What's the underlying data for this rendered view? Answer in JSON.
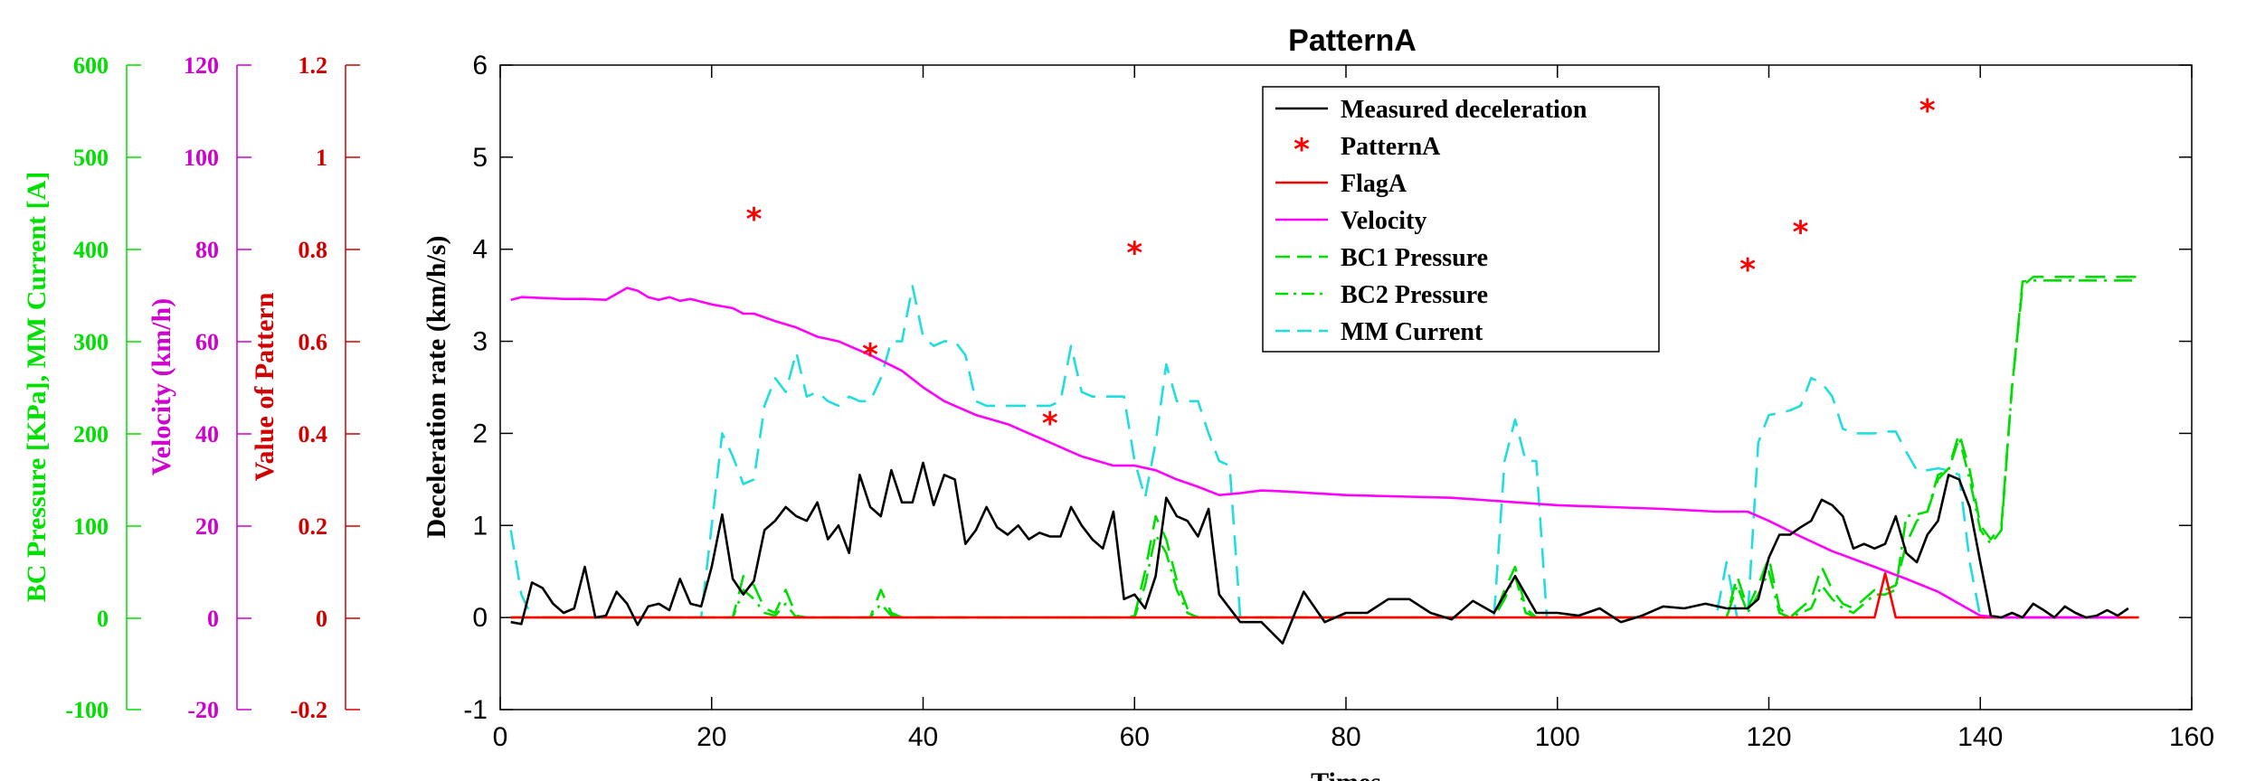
{
  "chart_data": {
    "type": "line",
    "title": "PatternA",
    "xlabel": "Times",
    "ylabel": "Deceleration rate (km/h/s)",
    "xlim": [
      0,
      160
    ],
    "ylim": [
      -1,
      6
    ],
    "xticks": [
      0,
      20,
      40,
      60,
      80,
      100,
      120,
      140,
      160
    ],
    "yticks": [
      -1,
      0,
      1,
      2,
      3,
      4,
      5,
      6
    ],
    "legend_position": "top-center",
    "extra_axes": [
      {
        "label": "BC Pressure [KPa], MM Current [A]",
        "color": "#00e000",
        "ticks": [
          "600",
          "500",
          "400",
          "300",
          "200",
          "100",
          "0",
          "-100"
        ]
      },
      {
        "label": "Velocity (km/h)",
        "color": "#d000d0",
        "ticks": [
          "120",
          "100",
          "80",
          "60",
          "40",
          "20",
          "0",
          "-20"
        ]
      },
      {
        "label": "Value of Pattern",
        "color": "#d00000",
        "ticks": [
          "1.2",
          "1",
          "0.8",
          "0.6",
          "0.4",
          "0.2",
          "0",
          "-0.2"
        ]
      }
    ],
    "series": [
      {
        "name": "Measured deceleration",
        "color": "#000000",
        "style": "solid",
        "x": [
          1,
          2,
          3,
          4,
          5,
          6,
          7,
          8,
          9,
          10,
          11,
          12,
          13,
          14,
          15,
          16,
          17,
          18,
          19,
          20,
          21,
          22,
          23,
          24,
          25,
          26,
          27,
          28,
          29,
          30,
          31,
          32,
          33,
          34,
          35,
          36,
          37,
          38,
          39,
          40,
          41,
          42,
          43,
          44,
          45,
          46,
          47,
          48,
          49,
          50,
          51,
          52,
          53,
          54,
          55,
          56,
          57,
          58,
          59,
          60,
          61,
          62,
          63,
          64,
          65,
          66,
          67,
          68,
          70,
          72,
          74,
          75,
          76,
          78,
          80,
          82,
          84,
          86,
          88,
          90,
          92,
          94,
          96,
          98,
          100,
          102,
          104,
          106,
          108,
          110,
          112,
          114,
          116,
          118,
          119,
          120,
          121,
          122,
          123,
          124,
          125,
          126,
          127,
          128,
          129,
          130,
          131,
          132,
          133,
          134,
          135,
          136,
          137,
          138,
          139,
          140,
          141,
          142,
          143,
          144,
          145,
          146,
          147,
          148,
          149,
          150,
          151,
          152,
          153,
          154
        ],
        "y": [
          -0.05,
          -0.07,
          0.38,
          0.32,
          0.15,
          0.05,
          0.1,
          0.55,
          0.0,
          0.02,
          0.28,
          0.15,
          -0.08,
          0.12,
          0.15,
          0.08,
          0.42,
          0.15,
          0.12,
          0.55,
          1.12,
          0.42,
          0.25,
          0.4,
          0.95,
          1.05,
          1.2,
          1.1,
          1.05,
          1.25,
          0.85,
          1.0,
          0.7,
          1.55,
          1.2,
          1.1,
          1.6,
          1.25,
          1.25,
          1.68,
          1.22,
          1.55,
          1.5,
          0.8,
          0.95,
          1.2,
          0.98,
          0.9,
          1.0,
          0.85,
          0.92,
          0.88,
          0.88,
          1.2,
          1.0,
          0.85,
          0.75,
          1.15,
          0.2,
          0.25,
          0.1,
          0.45,
          1.3,
          1.1,
          1.05,
          0.88,
          1.18,
          0.25,
          -0.05,
          -0.05,
          -0.28,
          0.0,
          0.28,
          -0.05,
          0.05,
          0.05,
          0.2,
          0.2,
          0.05,
          -0.02,
          0.18,
          0.05,
          0.45,
          0.05,
          0.05,
          0.02,
          0.1,
          -0.05,
          0.02,
          0.12,
          0.1,
          0.15,
          0.1,
          0.1,
          0.2,
          0.65,
          0.9,
          0.9,
          0.98,
          1.05,
          1.28,
          1.22,
          1.1,
          0.75,
          0.8,
          0.75,
          0.8,
          1.1,
          0.7,
          0.6,
          0.9,
          1.05,
          1.55,
          1.5,
          1.2,
          0.6,
          0.02,
          0.0,
          0.05,
          0.0,
          0.15,
          0.08,
          0.0,
          0.12,
          0.05,
          0.0,
          0.02,
          0.08,
          0.02,
          0.1
        ]
      },
      {
        "name": "PatternA",
        "color": "#ff0000",
        "style": "markers",
        "x": [
          24,
          35,
          52,
          60,
          118,
          123,
          135
        ],
        "y": [
          4.37,
          2.9,
          2.15,
          4.0,
          3.82,
          4.23,
          5.55
        ]
      },
      {
        "name": "FlagA",
        "color": "#ff0000",
        "style": "solid",
        "x": [
          1,
          130,
          131,
          132,
          155
        ],
        "y": [
          0,
          0,
          0.48,
          0,
          0
        ]
      },
      {
        "name": "Velocity",
        "color": "#ff00ff",
        "style": "solid",
        "x": [
          1,
          2,
          4,
          6,
          8,
          10,
          12,
          13,
          14,
          15,
          16,
          17,
          18,
          20,
          22,
          23,
          24,
          26,
          28,
          30,
          32,
          35,
          38,
          40,
          42,
          45,
          48,
          50,
          52,
          55,
          58,
          60,
          62,
          64,
          66,
          68,
          70,
          72,
          74,
          80,
          90,
          100,
          110,
          115,
          118,
          120,
          123,
          126,
          130,
          133,
          136,
          138,
          140,
          142,
          145,
          150,
          153
        ],
        "y": [
          3.45,
          3.48,
          3.47,
          3.46,
          3.46,
          3.45,
          3.58,
          3.55,
          3.48,
          3.45,
          3.48,
          3.44,
          3.46,
          3.4,
          3.36,
          3.3,
          3.3,
          3.22,
          3.15,
          3.05,
          3.0,
          2.85,
          2.68,
          2.5,
          2.35,
          2.2,
          2.1,
          2.0,
          1.9,
          1.75,
          1.65,
          1.65,
          1.6,
          1.5,
          1.42,
          1.33,
          1.35,
          1.38,
          1.37,
          1.33,
          1.3,
          1.22,
          1.18,
          1.15,
          1.15,
          1.05,
          0.88,
          0.72,
          0.55,
          0.42,
          0.28,
          0.15,
          0.02,
          0.0,
          0.0,
          0.0,
          0.0
        ]
      },
      {
        "name": "BC1 Pressure",
        "color": "#00dd00",
        "style": "dashed",
        "x": [
          1,
          20,
          22,
          23,
          24,
          25,
          26,
          27,
          28,
          29,
          35,
          36,
          37,
          38,
          50,
          55,
          59,
          60,
          61,
          62,
          63,
          64,
          65,
          66,
          70,
          94,
          95,
          96,
          97,
          98,
          99,
          116,
          117,
          118,
          119,
          120,
          121,
          122,
          124,
          125,
          126,
          127,
          128,
          129,
          130,
          131,
          132,
          133,
          134,
          135,
          136,
          137,
          138,
          139,
          140,
          141,
          142,
          143,
          144,
          145,
          155
        ],
        "y": [
          0,
          0,
          0,
          0.45,
          0.35,
          0.1,
          0.05,
          0.3,
          0.02,
          0,
          0,
          0.3,
          0.05,
          0,
          0,
          0,
          0,
          0.02,
          0.5,
          1.1,
          0.85,
          0.4,
          0.1,
          0,
          0,
          0,
          0.3,
          0.55,
          0.1,
          0,
          0,
          0,
          0.45,
          0.1,
          0.35,
          0.65,
          0.1,
          0,
          0.2,
          0.55,
          0.3,
          0.15,
          0.1,
          0.2,
          0.3,
          0.3,
          0.35,
          0.8,
          1.05,
          1.15,
          1.5,
          1.62,
          2.0,
          1.6,
          1.0,
          0.85,
          1.0,
          2.5,
          3.6,
          3.7,
          3.7
        ]
      },
      {
        "name": "BC2 Pressure",
        "color": "#00dd00",
        "style": "dashdot",
        "x": [
          1,
          20,
          22,
          23,
          24,
          25,
          26,
          27,
          28,
          29,
          35,
          36,
          37,
          38,
          50,
          55,
          59,
          60,
          61,
          62,
          63,
          64,
          65,
          66,
          70,
          94,
          95,
          96,
          97,
          98,
          99,
          116,
          117,
          118,
          119,
          120,
          121,
          122,
          124,
          125,
          126,
          127,
          128,
          129,
          130,
          131,
          132,
          133,
          134,
          135,
          136,
          137,
          138,
          139,
          140,
          141,
          142,
          143,
          144,
          145,
          155
        ],
        "y": [
          0,
          0,
          0,
          0.3,
          0.2,
          0.05,
          0.02,
          0.15,
          0.0,
          0,
          0,
          0.15,
          0.02,
          0,
          0,
          0,
          0,
          0.0,
          0.35,
          0.9,
          0.7,
          0.3,
          0.05,
          0,
          0,
          0,
          0.2,
          0.45,
          0.05,
          0,
          0,
          0,
          0.35,
          0.05,
          0.25,
          0.5,
          0.05,
          0,
          0.1,
          0.35,
          0.2,
          0.1,
          0.05,
          0.15,
          0.25,
          0.25,
          0.3,
          1.1,
          1.12,
          1.15,
          1.55,
          1.6,
          1.95,
          1.5,
          0.95,
          0.8,
          0.95,
          2.5,
          3.65,
          3.66,
          3.66
        ]
      },
      {
        "name": "MM Current",
        "color": "#22dddd",
        "style": "dashed",
        "x": [
          1,
          2,
          3,
          19,
          20,
          21,
          22,
          23,
          24,
          25,
          26,
          27,
          28,
          29,
          30,
          31,
          32,
          33,
          34,
          35,
          36,
          37,
          38,
          39,
          40,
          41,
          42,
          43,
          44,
          45,
          46,
          47,
          48,
          49,
          50,
          51,
          52,
          53,
          54,
          55,
          56,
          57,
          58,
          59,
          60,
          61,
          62,
          63,
          64,
          65,
          66,
          67,
          68,
          69,
          70,
          94,
          95,
          96,
          97,
          98,
          99,
          100,
          115,
          116,
          117,
          118,
          119,
          120,
          121,
          122,
          123,
          124,
          125,
          126,
          127,
          128,
          129,
          130,
          131,
          132,
          133,
          134,
          135,
          136,
          137,
          138,
          139,
          140,
          141,
          155
        ],
        "y": [
          0.95,
          0.25,
          0,
          0,
          1.0,
          2.0,
          1.75,
          1.45,
          1.5,
          2.3,
          2.6,
          2.45,
          2.88,
          2.4,
          2.45,
          2.35,
          2.3,
          2.4,
          2.35,
          2.35,
          2.6,
          3.0,
          3.0,
          3.6,
          3.05,
          2.95,
          3.0,
          3.0,
          2.85,
          2.35,
          2.3,
          2.3,
          2.3,
          2.3,
          2.3,
          2.3,
          2.3,
          2.35,
          2.95,
          2.45,
          2.4,
          2.4,
          2.4,
          2.4,
          1.7,
          1.3,
          1.9,
          2.75,
          2.35,
          2.35,
          2.35,
          2.0,
          1.7,
          1.65,
          0,
          0,
          1.7,
          2.15,
          1.7,
          1.7,
          0,
          0,
          0,
          0.6,
          0,
          0,
          1.9,
          2.2,
          2.22,
          2.25,
          2.3,
          2.6,
          2.55,
          2.4,
          2.05,
          2.0,
          2.0,
          2.0,
          2.02,
          2.02,
          1.8,
          1.6,
          1.6,
          1.62,
          1.6,
          1.55,
          0.6,
          0,
          0,
          0
        ]
      }
    ]
  }
}
